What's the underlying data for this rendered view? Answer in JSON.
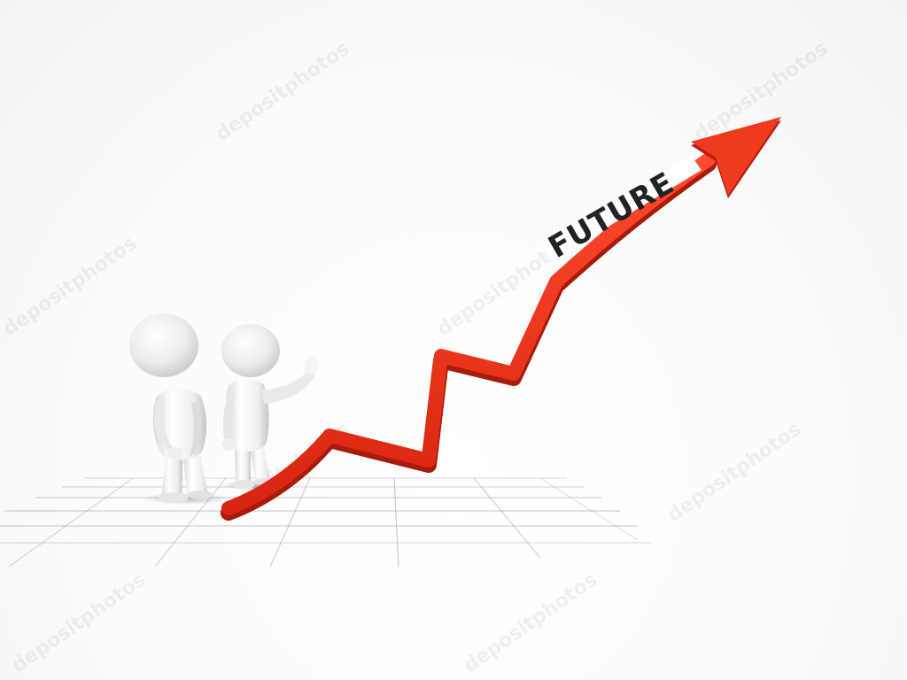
{
  "scene": {
    "arrow_label": "FUTURE",
    "watermark_text": "depositphotos",
    "colors": {
      "arrow": "#e8331e",
      "arrow_dark": "#b51d0c",
      "arrow_label": "#222222",
      "figure": "#f4f4f4",
      "grid_line": "#9a9a9a"
    },
    "figures": [
      {
        "name": "left-person",
        "pose": "standing"
      },
      {
        "name": "right-person",
        "pose": "waving"
      }
    ]
  }
}
